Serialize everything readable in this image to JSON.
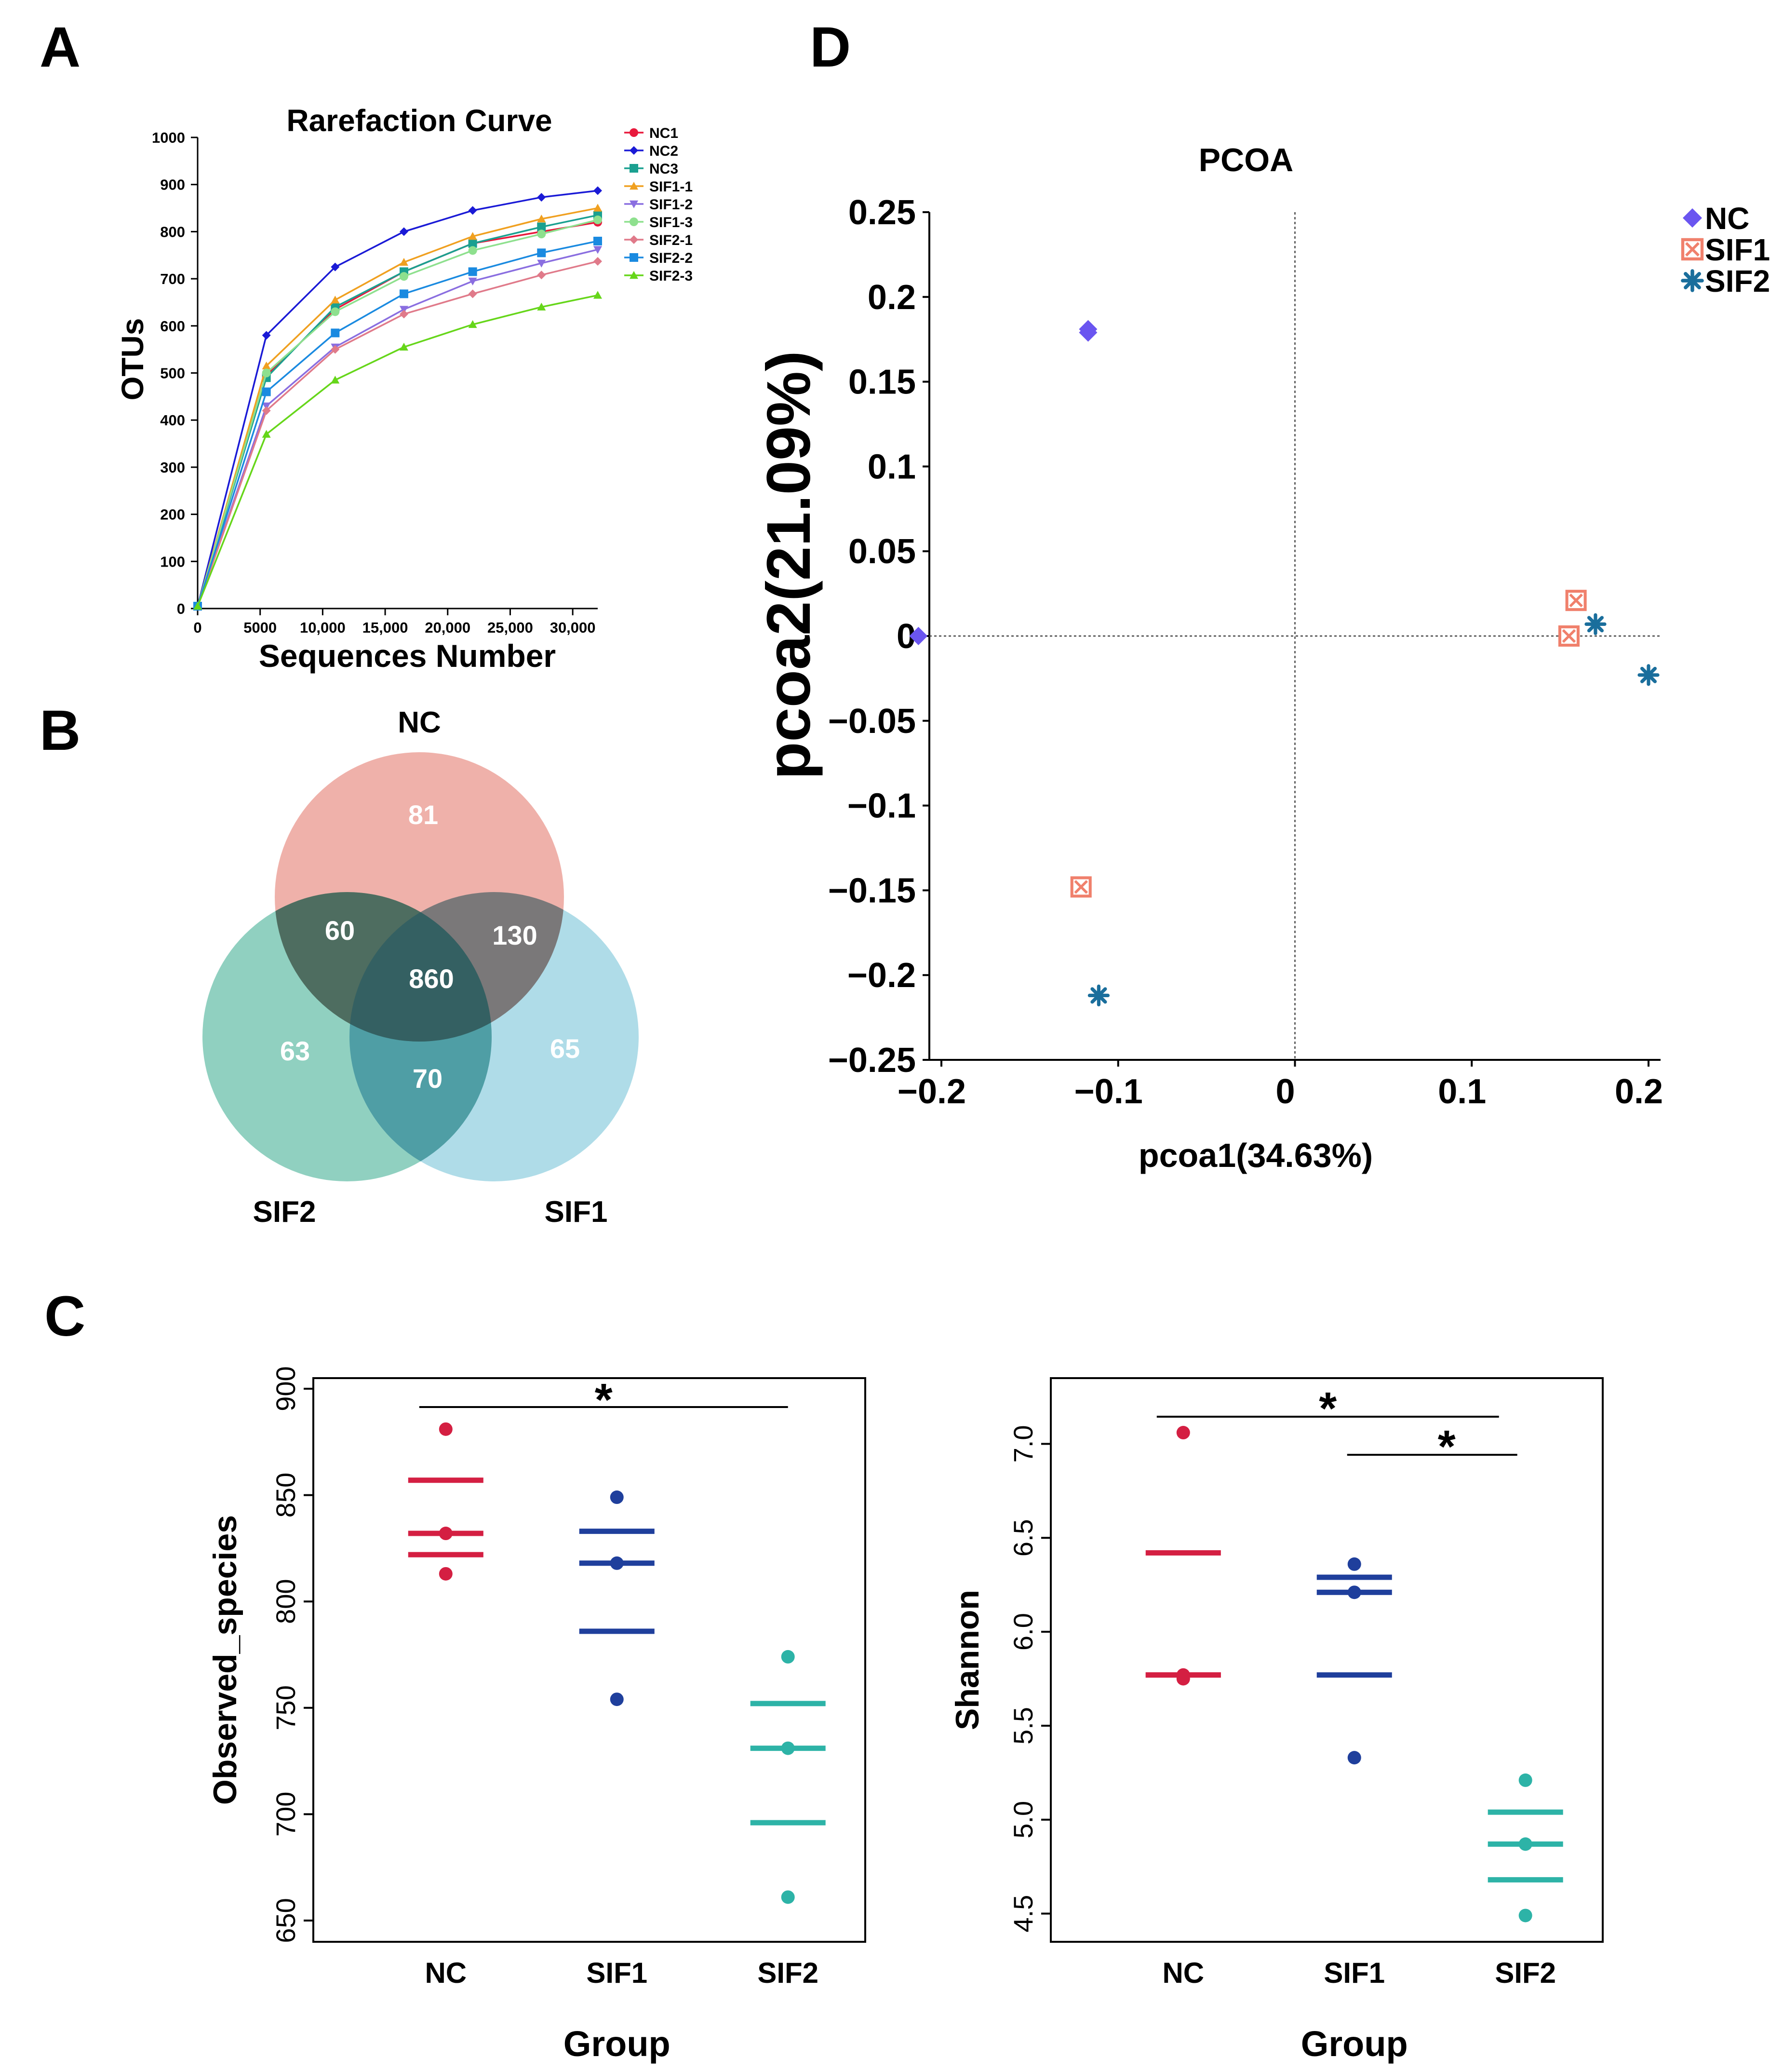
{
  "panels": {
    "A": {
      "label": "A"
    },
    "B": {
      "label": "B"
    },
    "C": {
      "label": "C"
    },
    "D": {
      "label": "D"
    }
  },
  "chart_data": [
    {
      "id": "rarefaction",
      "type": "line",
      "title": "Rarefaction Curve",
      "xlabel": "Sequences Number",
      "ylabel": "OTUs",
      "xlim": [
        0,
        32000
      ],
      "ylim": [
        0,
        1000
      ],
      "x_ticks": [
        0,
        5000,
        10000,
        15000,
        20000,
        25000,
        30000
      ],
      "x_tick_labels": [
        "0",
        "5000",
        "10,000",
        "15,000",
        "20,000",
        "25,000",
        "30,000"
      ],
      "y_ticks": [
        0,
        100,
        200,
        300,
        400,
        500,
        600,
        700,
        800,
        900,
        1000
      ],
      "y_tick_labels": [
        "0",
        "100",
        "200",
        "300",
        "400",
        "500",
        "600",
        "700",
        "800",
        "900",
        "1000"
      ],
      "legend_position": "top-right",
      "x": [
        0,
        5500,
        11000,
        16500,
        22000,
        27500,
        32000
      ],
      "series": [
        {
          "name": "NC1",
          "color": "#e8193c",
          "marker": "circle",
          "values": [
            5,
            495,
            635,
            715,
            775,
            800,
            820
          ]
        },
        {
          "name": "NC2",
          "color": "#1a1ad6",
          "marker": "diamond",
          "values": [
            5,
            580,
            725,
            800,
            845,
            873,
            887
          ]
        },
        {
          "name": "NC3",
          "color": "#1aa090",
          "marker": "square",
          "values": [
            5,
            490,
            640,
            715,
            775,
            810,
            835
          ]
        },
        {
          "name": "SIF1-1",
          "color": "#f0a020",
          "marker": "triangle",
          "values": [
            5,
            515,
            655,
            735,
            790,
            827,
            850
          ]
        },
        {
          "name": "SIF1-2",
          "color": "#8a6ee0",
          "marker": "triangle-down",
          "values": [
            5,
            430,
            555,
            635,
            695,
            733,
            762
          ]
        },
        {
          "name": "SIF1-3",
          "color": "#8ee08e",
          "marker": "circle",
          "values": [
            5,
            500,
            630,
            705,
            760,
            795,
            825
          ]
        },
        {
          "name": "SIF2-1",
          "color": "#e07a8a",
          "marker": "diamond",
          "values": [
            5,
            420,
            550,
            625,
            668,
            708,
            737
          ]
        },
        {
          "name": "SIF2-2",
          "color": "#1a8ae0",
          "marker": "square",
          "values": [
            5,
            460,
            585,
            668,
            715,
            755,
            780
          ]
        },
        {
          "name": "SIF2-3",
          "color": "#66d61a",
          "marker": "triangle",
          "values": [
            5,
            370,
            485,
            555,
            603,
            640,
            665
          ]
        }
      ]
    },
    {
      "id": "venn",
      "type": "venn",
      "sets": [
        {
          "name": "NC",
          "color": "#e06a5c"
        },
        {
          "name": "SIF2",
          "color": "#2aa586"
        },
        {
          "name": "SIF1",
          "color": "#66bcd2"
        }
      ],
      "regions": [
        {
          "sets": [
            "NC"
          ],
          "value": 81
        },
        {
          "sets": [
            "SIF2"
          ],
          "value": 63
        },
        {
          "sets": [
            "SIF1"
          ],
          "value": 65
        },
        {
          "sets": [
            "NC",
            "SIF2"
          ],
          "value": 60
        },
        {
          "sets": [
            "NC",
            "SIF1"
          ],
          "value": 130
        },
        {
          "sets": [
            "SIF2",
            "SIF1"
          ],
          "value": 70
        },
        {
          "sets": [
            "NC",
            "SIF2",
            "SIF1"
          ],
          "value": 860
        }
      ]
    },
    {
      "id": "observed_species",
      "type": "scatter",
      "xlabel": "Group",
      "ylabel": "Observed_species",
      "categories": [
        "NC",
        "SIF1",
        "SIF2"
      ],
      "colors": [
        "#d41f42",
        "#1f3f9c",
        "#2db3a7"
      ],
      "ylim": [
        640,
        905
      ],
      "y_ticks": [
        650,
        700,
        750,
        800,
        850,
        900
      ],
      "points": [
        [
          881,
          832,
          813
        ],
        [
          849,
          818,
          754
        ],
        [
          774,
          731,
          661
        ]
      ],
      "summary_lines": [
        [
          857,
          832,
          822
        ],
        [
          833,
          818,
          786
        ],
        [
          752,
          731,
          696
        ]
      ],
      "significance": [
        {
          "from": "NC",
          "to": "SIF2",
          "label": "*"
        }
      ]
    },
    {
      "id": "shannon",
      "type": "scatter",
      "xlabel": "Group",
      "ylabel": "Shannon",
      "categories": [
        "NC",
        "SIF1",
        "SIF2"
      ],
      "colors": [
        "#d41f42",
        "#1f3f9c",
        "#2db3a7"
      ],
      "ylim": [
        4.35,
        7.35
      ],
      "y_ticks": [
        4.5,
        5.0,
        5.5,
        6.0,
        6.5,
        7.0
      ],
      "y_tick_labels": [
        "4.5",
        "5.0",
        "5.5",
        "6.0",
        "6.5",
        "7.0"
      ],
      "points": [
        [
          7.06,
          5.77,
          5.75
        ],
        [
          6.36,
          6.21,
          5.33
        ],
        [
          5.21,
          4.87,
          4.49
        ]
      ],
      "summary_lines": [
        [
          6.42,
          5.77,
          5.77
        ],
        [
          6.29,
          6.21,
          5.77
        ],
        [
          5.04,
          4.87,
          4.68
        ]
      ],
      "significance": [
        {
          "from": "NC",
          "to": "SIF2",
          "label": "*"
        },
        {
          "from": "SIF1",
          "to": "SIF2",
          "label": "*"
        }
      ]
    },
    {
      "id": "pcoa",
      "type": "scatter",
      "title": "PCOA",
      "xlabel": "pcoa1(34.63%)",
      "ylabel": "pcoa2(21.09%)",
      "xlim": [
        -0.215,
        0.2
      ],
      "ylim": [
        -0.25,
        0.25
      ],
      "x_ticks": [
        -0.2,
        -0.1,
        0,
        0.1,
        0.2
      ],
      "x_tick_labels": [
        "−0.2",
        "−0.1",
        "0",
        "0.1",
        "0.2"
      ],
      "y_ticks": [
        -0.25,
        -0.2,
        -0.15,
        -0.1,
        -0.05,
        0,
        0.05,
        0.1,
        0.15,
        0.2,
        0.25
      ],
      "y_tick_labels": [
        "−0.25",
        "−0.2",
        "−0.15",
        "−0.1",
        "−0.05",
        "0",
        "0.05",
        "0.1",
        "0.15",
        "0.2",
        "0.25"
      ],
      "legend_position": "top-right",
      "series": [
        {
          "name": "NC",
          "color": "#6a55f0",
          "marker": "diamond",
          "points": [
            [
              -0.213,
              0.0
            ],
            [
              -0.117,
              0.181
            ],
            [
              -0.117,
              0.179
            ]
          ]
        },
        {
          "name": "SIF1",
          "color": "#f0806c",
          "marker": "boxed-x",
          "points": [
            [
              -0.121,
              -0.148
            ],
            [
              0.155,
              0.0
            ],
            [
              0.159,
              0.021
            ]
          ]
        },
        {
          "name": "SIF2",
          "color": "#1a6e9c",
          "marker": "asterisk",
          "points": [
            [
              -0.111,
              -0.212
            ],
            [
              0.17,
              0.007
            ],
            [
              0.2,
              -0.023
            ]
          ]
        }
      ]
    }
  ]
}
